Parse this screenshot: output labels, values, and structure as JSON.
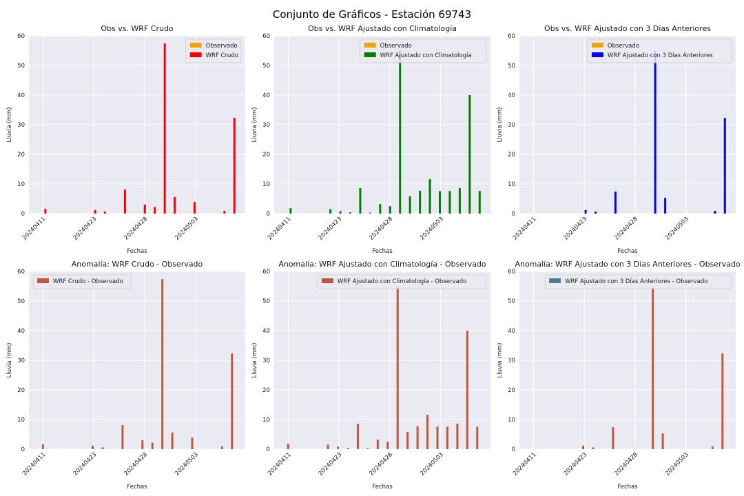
{
  "figure": {
    "title": "Conjunto de Gráficos - Estación 69743"
  },
  "chart_data": [
    {
      "type": "bar",
      "title": "Obs vs. WRF Crudo",
      "xlabel": "Fechas",
      "ylabel": "Lluvia (mm)",
      "ylim": [
        0,
        60
      ],
      "yticks": [
        0,
        10,
        20,
        30,
        40,
        50,
        60
      ],
      "xticks": [
        "20240411",
        "20240423",
        "20240428",
        "20240503"
      ],
      "grid": true,
      "legend_position": "top-right",
      "x": [
        1,
        2,
        3,
        4,
        5,
        6,
        7,
        8,
        9,
        10,
        11,
        12,
        13,
        14,
        15,
        16,
        17,
        18,
        19,
        20
      ],
      "series": [
        {
          "name": "Observado",
          "color": "#f5a300",
          "values": [
            0,
            0,
            0,
            0,
            0,
            0,
            0,
            0,
            0,
            0,
            0,
            0,
            0,
            0,
            0,
            0,
            0,
            0,
            0,
            0
          ]
        },
        {
          "name": "WRF Crudo",
          "color": "#ff0000",
          "values": [
            1.6,
            0,
            0,
            0,
            0,
            1.2,
            0.6,
            0,
            8.1,
            0,
            3.0,
            2.2,
            57.4,
            5.6,
            0,
            3.9,
            0,
            0,
            0.9,
            32.3
          ]
        }
      ]
    },
    {
      "type": "bar",
      "title": "Obs vs. WRF Ajustado con Climatología",
      "xlabel": "Fechas",
      "ylabel": "Lluvia (mm)",
      "ylim": [
        0,
        60
      ],
      "yticks": [
        0,
        10,
        20,
        30,
        40,
        50,
        60
      ],
      "xticks": [
        "20240411",
        "20240423",
        "20240428",
        "20240503"
      ],
      "grid": true,
      "legend_position": "top-right",
      "x": [
        1,
        2,
        3,
        4,
        5,
        6,
        7,
        8,
        9,
        10,
        11,
        12,
        13,
        14,
        15,
        16,
        17,
        18,
        19,
        20
      ],
      "series": [
        {
          "name": "Observado",
          "color": "#f5a300",
          "values": [
            0,
            0,
            0,
            0,
            0,
            0,
            0,
            0,
            0,
            0,
            0,
            0,
            0,
            0,
            0,
            0,
            0,
            0,
            0,
            0
          ]
        },
        {
          "name": "WRF Ajustado con Climatología",
          "color": "#007f00",
          "values": [
            1.8,
            0,
            0,
            0,
            1.5,
            0.8,
            0.4,
            8.6,
            0.3,
            3.2,
            2.5,
            55.0,
            5.8,
            7.7,
            11.6,
            7.6,
            7.6,
            8.6,
            40.0,
            7.6
          ]
        }
      ]
    },
    {
      "type": "bar",
      "title": "Obs vs. WRF Ajustado con 3 Días Anteriores",
      "xlabel": "Fechas",
      "ylabel": "Lluvia (mm)",
      "ylim": [
        0,
        60
      ],
      "yticks": [
        0,
        10,
        20,
        30,
        40,
        50,
        60
      ],
      "xticks": [
        "20240411",
        "20240423",
        "20240428",
        "20240503"
      ],
      "grid": true,
      "legend_position": "top-right",
      "x": [
        1,
        2,
        3,
        4,
        5,
        6,
        7,
        8,
        9,
        10,
        11,
        12,
        13,
        14,
        15,
        16,
        17,
        18,
        19,
        20
      ],
      "series": [
        {
          "name": "Observado",
          "color": "#f5a300",
          "values": [
            0,
            0,
            0,
            0,
            0,
            0,
            0,
            0,
            0,
            0,
            0,
            0,
            0,
            0,
            0,
            0,
            0,
            0,
            0,
            0
          ]
        },
        {
          "name": "WRF Ajustado con 3 Días Anteriores",
          "color": "#0000ff",
          "values": [
            0,
            0,
            0,
            0,
            0,
            1.2,
            0.6,
            0,
            7.4,
            0,
            0,
            0,
            55.0,
            5.3,
            0,
            0,
            0,
            0,
            0.9,
            32.3
          ]
        }
      ]
    },
    {
      "type": "bar",
      "title": "Anomalía: WRF Crudo - Observado",
      "xlabel": "Fechas",
      "ylabel": "Lluvia (mm)",
      "ylim": [
        0,
        60
      ],
      "yticks": [
        0,
        10,
        20,
        30,
        40,
        50,
        60
      ],
      "xticks": [
        "20240411",
        "20240423",
        "20240428",
        "20240503"
      ],
      "grid": true,
      "legend_position": "top-left",
      "x": [
        1,
        2,
        3,
        4,
        5,
        6,
        7,
        8,
        9,
        10,
        11,
        12,
        13,
        14,
        15,
        16,
        17,
        18,
        19,
        20
      ],
      "series": [
        {
          "name": "WRF Crudo - Observado",
          "color": "#c0573b",
          "values": [
            1.6,
            0,
            0,
            0,
            0,
            1.2,
            0.6,
            0,
            8.1,
            0,
            3.0,
            2.2,
            57.4,
            5.6,
            0,
            3.9,
            0,
            0,
            0.9,
            32.3
          ]
        }
      ]
    },
    {
      "type": "bar",
      "title": "Anomalía: WRF Ajustado con Climatología - Observado",
      "xlabel": "Fechas",
      "ylabel": "Lluvia (mm)",
      "ylim": [
        0,
        60
      ],
      "yticks": [
        0,
        10,
        20,
        30,
        40,
        50,
        60
      ],
      "xticks": [
        "20240411",
        "20240423",
        "20240428",
        "20240503"
      ],
      "grid": true,
      "legend_position": "top-right",
      "x": [
        1,
        2,
        3,
        4,
        5,
        6,
        7,
        8,
        9,
        10,
        11,
        12,
        13,
        14,
        15,
        16,
        17,
        18,
        19,
        20
      ],
      "series": [
        {
          "name": "WRF Ajustado con Climatología - Observado",
          "color": "#c0573b",
          "values": [
            1.8,
            0,
            0,
            0,
            1.5,
            0.8,
            0.4,
            8.6,
            0.3,
            3.2,
            2.5,
            55.0,
            5.8,
            7.7,
            11.6,
            7.6,
            7.6,
            8.6,
            40.0,
            7.6
          ]
        }
      ]
    },
    {
      "type": "bar",
      "title": "Anomalía: WRF Ajustado con 3 Días Anteriores - Observado",
      "xlabel": "Fechas",
      "ylabel": "Lluvia (mm)",
      "ylim": [
        0,
        60
      ],
      "yticks": [
        0,
        10,
        20,
        30,
        40,
        50,
        60
      ],
      "xticks": [
        "20240411",
        "20240423",
        "20240428",
        "20240503"
      ],
      "grid": true,
      "legend_position": "top-right",
      "x": [
        1,
        2,
        3,
        4,
        5,
        6,
        7,
        8,
        9,
        10,
        11,
        12,
        13,
        14,
        15,
        16,
        17,
        18,
        19,
        20
      ],
      "series": [
        {
          "name": "WRF Ajustado con 3 Días Anteriores - Observado",
          "color": "#c0573b",
          "legend_color": "#4a7f8f",
          "values": [
            0,
            0,
            0,
            0,
            0,
            1.2,
            0.6,
            0,
            7.4,
            0,
            0,
            0,
            55.0,
            5.3,
            0,
            0,
            0,
            0,
            0.9,
            32.3
          ]
        }
      ]
    }
  ]
}
